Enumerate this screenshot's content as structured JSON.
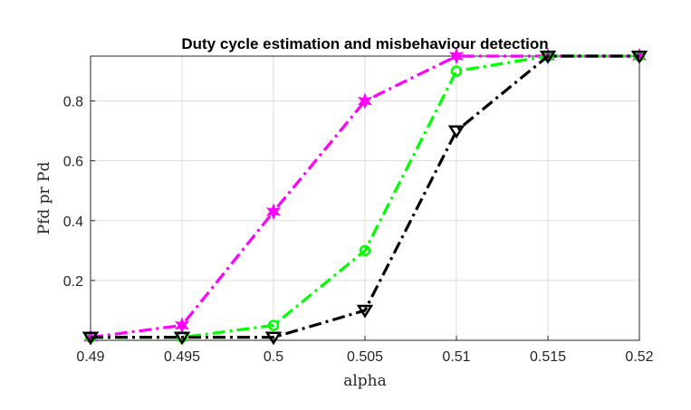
{
  "chart_data": {
    "type": "line",
    "title": "Duty cycle estimation and misbehaviour detection",
    "xlabel": "alpha",
    "ylabel": "Pfd pr Pd",
    "x": [
      0.49,
      0.495,
      0.5,
      0.505,
      0.51,
      0.515,
      0.52
    ],
    "x_tick_labels": [
      "0.49",
      "0.495",
      "0.5",
      "0.505",
      "0.51",
      "0.515",
      "0.52"
    ],
    "y_ticks": [
      0.2,
      0.4,
      0.6,
      0.8
    ],
    "y_tick_labels": [
      "0.2",
      "0.4",
      "0.6",
      "0.8"
    ],
    "xlim": [
      0.49,
      0.52
    ],
    "ylim": [
      0.0,
      0.95
    ],
    "grid": true,
    "series": [
      {
        "color": "#ff00ff",
        "marker": "star",
        "line_style": "dash-dot",
        "values": [
          0.01,
          0.05,
          0.43,
          0.8,
          0.95,
          0.95,
          0.95
        ]
      },
      {
        "color": "#00ff00",
        "marker": "circle",
        "line_style": "dash-dot",
        "values": [
          0.01,
          0.01,
          0.05,
          0.3,
          0.9,
          0.95,
          0.95
        ]
      },
      {
        "color": "#000000",
        "marker": "triangle-down",
        "line_style": "dash-dot",
        "values": [
          0.01,
          0.01,
          0.01,
          0.1,
          0.7,
          0.95,
          0.95
        ]
      }
    ]
  }
}
